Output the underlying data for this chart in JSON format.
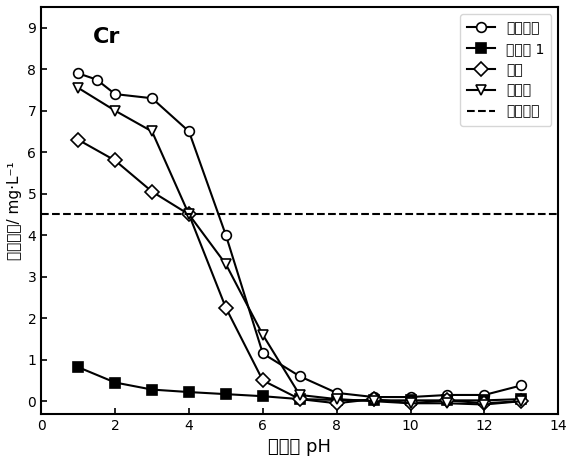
{
  "title": "Cr",
  "xlabel": "浸出液 pH",
  "ylabel": "浸出浓度/ mg·L⁻¹",
  "xlim": [
    0,
    14
  ],
  "ylim": [
    -0.3,
    9.5
  ],
  "yticks": [
    0,
    1,
    2,
    3,
    4,
    5,
    6,
    7,
    8,
    9
  ],
  "xticks": [
    0,
    2,
    4,
    6,
    8,
    10,
    12,
    14
  ],
  "dashed_line_y": 4.5,
  "series": [
    {
      "label": "原始飞灰",
      "marker": "o",
      "markersize": 7,
      "markerfacecolor": "white",
      "markeredgecolor": "black",
      "color": "black",
      "linewidth": 1.5,
      "x": [
        1,
        1.5,
        2,
        3,
        4,
        5,
        6,
        7,
        8,
        9,
        10,
        11,
        12,
        13
      ],
      "y": [
        7.9,
        7.75,
        7.4,
        7.3,
        6.5,
        4.0,
        1.15,
        0.6,
        0.2,
        0.1,
        0.1,
        0.15,
        0.15,
        0.38
      ]
    },
    {
      "label": "实施例 1",
      "marker": "s",
      "markersize": 7,
      "markerfacecolor": "black",
      "markeredgecolor": "black",
      "color": "black",
      "linewidth": 1.5,
      "x": [
        1,
        2,
        3,
        4,
        5,
        6,
        7,
        8,
        9,
        10,
        11,
        12,
        13
      ],
      "y": [
        0.82,
        0.45,
        0.28,
        0.22,
        0.17,
        0.12,
        0.05,
        0.03,
        0.02,
        0.02,
        0.02,
        0.02,
        0.05
      ]
    },
    {
      "label": "硫脲",
      "marker": "D",
      "markersize": 7,
      "markerfacecolor": "white",
      "markeredgecolor": "black",
      "color": "black",
      "linewidth": 1.5,
      "x": [
        1,
        2,
        3,
        4,
        5,
        6,
        7,
        8,
        9,
        10,
        11,
        12,
        13
      ],
      "y": [
        6.3,
        5.8,
        5.05,
        4.5,
        2.25,
        0.5,
        0.05,
        -0.05,
        0.05,
        -0.05,
        0.02,
        -0.05,
        0.0
      ]
    },
    {
      "label": "硫化钙",
      "marker": "v",
      "markersize": 7,
      "markerfacecolor": "white",
      "markeredgecolor": "black",
      "color": "black",
      "linewidth": 1.5,
      "x": [
        1,
        2,
        3,
        4,
        5,
        6,
        7,
        8,
        9,
        10,
        11,
        12,
        13
      ],
      "y": [
        7.55,
        7.0,
        6.5,
        4.5,
        3.3,
        1.6,
        0.15,
        0.05,
        0.0,
        -0.05,
        -0.05,
        -0.08,
        0.0
      ]
    }
  ],
  "legend_label_dashed": "国标限值",
  "background_color": "white"
}
